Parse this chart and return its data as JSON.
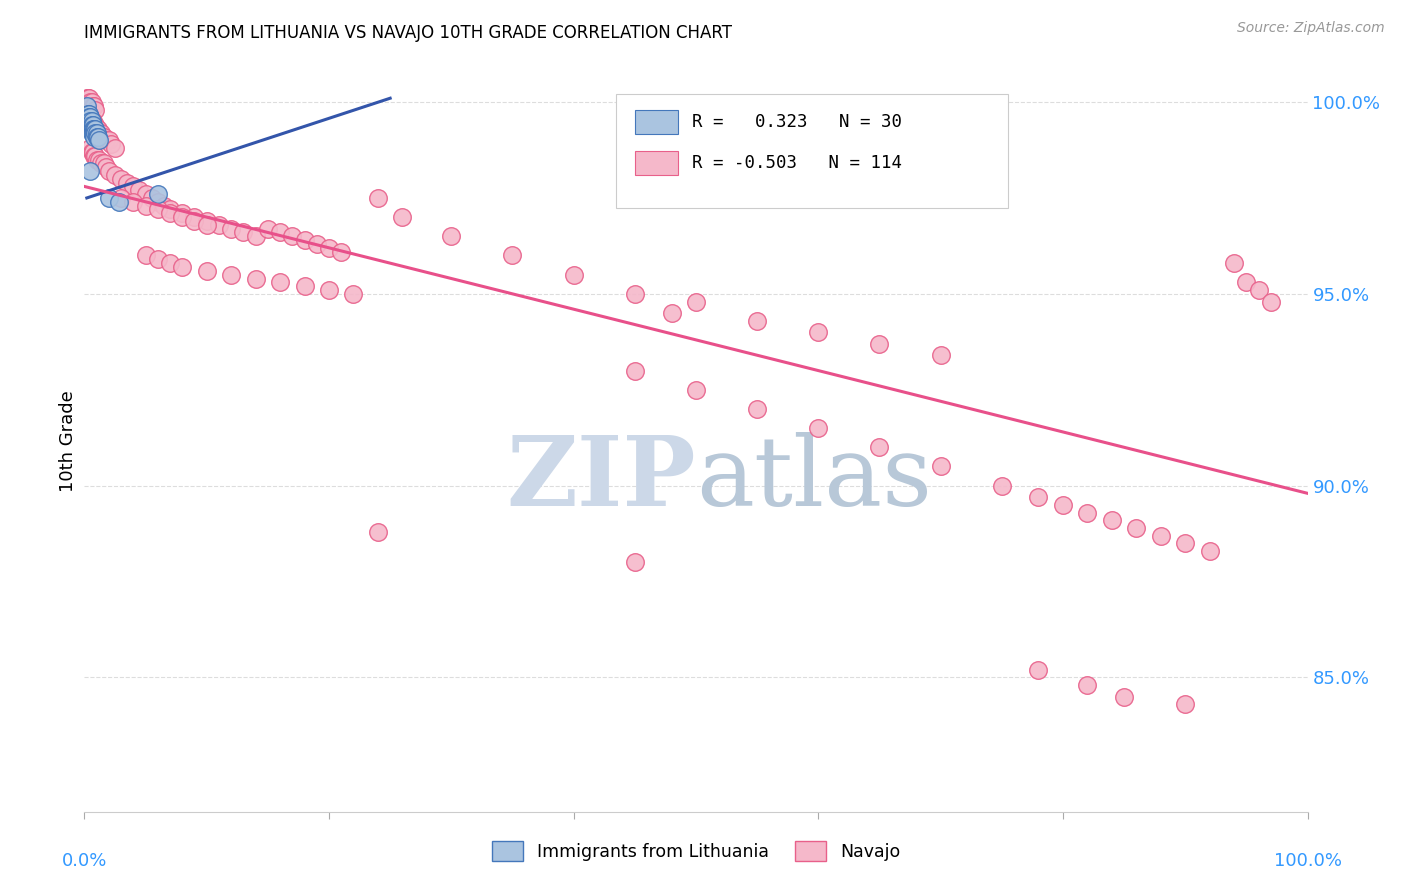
{
  "title": "IMMIGRANTS FROM LITHUANIA VS NAVAJO 10TH GRADE CORRELATION CHART",
  "source": "Source: ZipAtlas.com",
  "ylabel": "10th Grade",
  "xlim": [
    0.0,
    1.0
  ],
  "ylim": [
    0.815,
    1.008
  ],
  "yticks": [
    0.85,
    0.9,
    0.95,
    1.0
  ],
  "ytick_labels": [
    "85.0%",
    "90.0%",
    "95.0%",
    "100.0%"
  ],
  "blue_color": "#aac4e0",
  "pink_color": "#f5b8ca",
  "blue_edge_color": "#4477bb",
  "pink_edge_color": "#e8608a",
  "blue_line_color": "#3355aa",
  "pink_line_color": "#e8508a",
  "watermark_color": "#ccd8e8",
  "blue_scatter": [
    [
      0.002,
      0.999
    ],
    [
      0.003,
      0.997
    ],
    [
      0.003,
      0.996
    ],
    [
      0.004,
      0.997
    ],
    [
      0.004,
      0.996
    ],
    [
      0.004,
      0.995
    ],
    [
      0.005,
      0.996
    ],
    [
      0.005,
      0.995
    ],
    [
      0.005,
      0.994
    ],
    [
      0.005,
      0.993
    ],
    [
      0.006,
      0.995
    ],
    [
      0.006,
      0.994
    ],
    [
      0.006,
      0.993
    ],
    [
      0.006,
      0.992
    ],
    [
      0.007,
      0.994
    ],
    [
      0.007,
      0.993
    ],
    [
      0.007,
      0.992
    ],
    [
      0.008,
      0.993
    ],
    [
      0.008,
      0.992
    ],
    [
      0.008,
      0.991
    ],
    [
      0.009,
      0.993
    ],
    [
      0.009,
      0.992
    ],
    [
      0.01,
      0.992
    ],
    [
      0.01,
      0.991
    ],
    [
      0.011,
      0.991
    ],
    [
      0.012,
      0.99
    ],
    [
      0.02,
      0.975
    ],
    [
      0.028,
      0.974
    ],
    [
      0.06,
      0.976
    ],
    [
      0.005,
      0.982
    ]
  ],
  "blue_line": [
    [
      0.002,
      0.975
    ],
    [
      0.25,
      1.001
    ]
  ],
  "pink_line": [
    [
      0.0,
      0.978
    ],
    [
      1.0,
      0.898
    ]
  ],
  "pink_scatter": [
    [
      0.002,
      1.001
    ],
    [
      0.003,
      1.001
    ],
    [
      0.004,
      1.001
    ],
    [
      0.005,
      1.0
    ],
    [
      0.006,
      1.0
    ],
    [
      0.007,
      0.999
    ],
    [
      0.008,
      0.999
    ],
    [
      0.009,
      0.998
    ],
    [
      0.002,
      0.997
    ],
    [
      0.003,
      0.997
    ],
    [
      0.004,
      0.996
    ],
    [
      0.005,
      0.996
    ],
    [
      0.006,
      0.995
    ],
    [
      0.007,
      0.995
    ],
    [
      0.008,
      0.994
    ],
    [
      0.009,
      0.994
    ],
    [
      0.01,
      0.993
    ],
    [
      0.011,
      0.993
    ],
    [
      0.012,
      0.992
    ],
    [
      0.014,
      0.992
    ],
    [
      0.015,
      0.991
    ],
    [
      0.016,
      0.991
    ],
    [
      0.018,
      0.99
    ],
    [
      0.02,
      0.99
    ],
    [
      0.022,
      0.989
    ],
    [
      0.025,
      0.988
    ],
    [
      0.005,
      0.988
    ],
    [
      0.006,
      0.987
    ],
    [
      0.007,
      0.987
    ],
    [
      0.008,
      0.986
    ],
    [
      0.009,
      0.986
    ],
    [
      0.01,
      0.985
    ],
    [
      0.012,
      0.985
    ],
    [
      0.014,
      0.984
    ],
    [
      0.016,
      0.984
    ],
    [
      0.018,
      0.983
    ],
    [
      0.02,
      0.982
    ],
    [
      0.025,
      0.981
    ],
    [
      0.03,
      0.98
    ],
    [
      0.035,
      0.979
    ],
    [
      0.04,
      0.978
    ],
    [
      0.045,
      0.977
    ],
    [
      0.05,
      0.976
    ],
    [
      0.055,
      0.975
    ],
    [
      0.06,
      0.974
    ],
    [
      0.065,
      0.973
    ],
    [
      0.07,
      0.972
    ],
    [
      0.08,
      0.971
    ],
    [
      0.09,
      0.97
    ],
    [
      0.1,
      0.969
    ],
    [
      0.11,
      0.968
    ],
    [
      0.12,
      0.967
    ],
    [
      0.13,
      0.966
    ],
    [
      0.14,
      0.965
    ],
    [
      0.03,
      0.975
    ],
    [
      0.04,
      0.974
    ],
    [
      0.05,
      0.973
    ],
    [
      0.06,
      0.972
    ],
    [
      0.07,
      0.971
    ],
    [
      0.08,
      0.97
    ],
    [
      0.09,
      0.969
    ],
    [
      0.1,
      0.968
    ],
    [
      0.15,
      0.967
    ],
    [
      0.16,
      0.966
    ],
    [
      0.17,
      0.965
    ],
    [
      0.18,
      0.964
    ],
    [
      0.19,
      0.963
    ],
    [
      0.2,
      0.962
    ],
    [
      0.21,
      0.961
    ],
    [
      0.05,
      0.96
    ],
    [
      0.06,
      0.959
    ],
    [
      0.07,
      0.958
    ],
    [
      0.08,
      0.957
    ],
    [
      0.1,
      0.956
    ],
    [
      0.12,
      0.955
    ],
    [
      0.14,
      0.954
    ],
    [
      0.16,
      0.953
    ],
    [
      0.18,
      0.952
    ],
    [
      0.2,
      0.951
    ],
    [
      0.22,
      0.95
    ],
    [
      0.24,
      0.975
    ],
    [
      0.26,
      0.97
    ],
    [
      0.3,
      0.965
    ],
    [
      0.35,
      0.96
    ],
    [
      0.4,
      0.955
    ],
    [
      0.45,
      0.95
    ],
    [
      0.48,
      0.945
    ],
    [
      0.5,
      0.948
    ],
    [
      0.55,
      0.943
    ],
    [
      0.6,
      0.94
    ],
    [
      0.65,
      0.937
    ],
    [
      0.7,
      0.934
    ],
    [
      0.24,
      0.888
    ],
    [
      0.45,
      0.93
    ],
    [
      0.5,
      0.925
    ],
    [
      0.55,
      0.92
    ],
    [
      0.6,
      0.915
    ],
    [
      0.65,
      0.91
    ],
    [
      0.7,
      0.905
    ],
    [
      0.75,
      0.9
    ],
    [
      0.78,
      0.897
    ],
    [
      0.8,
      0.895
    ],
    [
      0.82,
      0.893
    ],
    [
      0.84,
      0.891
    ],
    [
      0.86,
      0.889
    ],
    [
      0.88,
      0.887
    ],
    [
      0.9,
      0.885
    ],
    [
      0.92,
      0.883
    ],
    [
      0.94,
      0.958
    ],
    [
      0.95,
      0.953
    ],
    [
      0.96,
      0.951
    ],
    [
      0.97,
      0.948
    ],
    [
      0.45,
      0.88
    ],
    [
      0.85,
      0.845
    ],
    [
      0.9,
      0.843
    ],
    [
      0.82,
      0.848
    ],
    [
      0.78,
      0.852
    ]
  ]
}
